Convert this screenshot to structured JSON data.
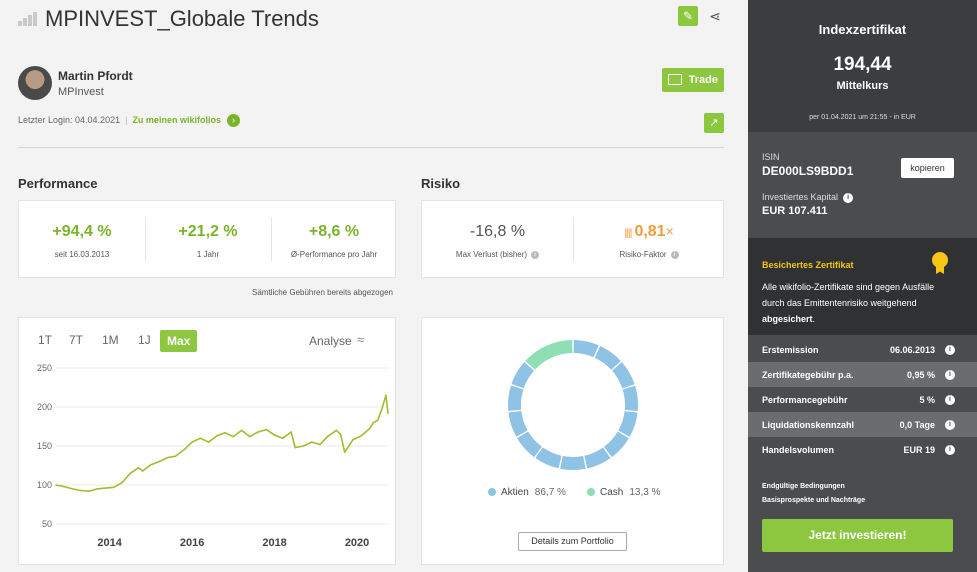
{
  "header": {
    "title": "MPINVEST_Globale Trends",
    "edit_icon": "pencil-icon",
    "share_icon": "share-icon"
  },
  "trader": {
    "name": "Martin Pfordt",
    "company": "MPInvest",
    "trade_label": "Trade",
    "last_login": "Letzter Login: 04.04.2021",
    "separator": "|",
    "wikifolios_link": "Zu meinen wikifolios"
  },
  "performance": {
    "title": "Performance",
    "kpis": [
      {
        "value": "+94,4 %",
        "label": "seit 16.03.2013"
      },
      {
        "value": "+21,2 %",
        "label": "1 Jahr"
      },
      {
        "value": "+8,6 %",
        "label": "Ø-Performance pro Jahr"
      }
    ],
    "fee_note": "Sämtliche Gebühren bereits abgezogen"
  },
  "risk": {
    "title": "Risiko",
    "max_loss_value": "-16,8 %",
    "max_loss_label": "Max Verlust (bisher)",
    "factor_value": "0,81",
    "factor_suffix": "×",
    "factor_label": "Risiko-Faktor"
  },
  "chart_controls": {
    "ranges": [
      "1T",
      "7T",
      "1M",
      "1J",
      "Max"
    ],
    "active": "Max",
    "analyse_label": "Analyse"
  },
  "chart_data": [
    {
      "type": "line",
      "title": "",
      "xlabel": "",
      "ylabel": "",
      "x_ticks": [
        "2014",
        "2016",
        "2018",
        "2020"
      ],
      "y_ticks": [
        250,
        200,
        150,
        100,
        50
      ],
      "ylim": [
        50,
        250
      ],
      "xlim": [
        2013.2,
        2021.25
      ],
      "color": "#9bbf2f",
      "grid": true,
      "series": [
        {
          "x": [
            2013.2,
            2013.4,
            2013.6,
            2013.8,
            2014.0,
            2014.2,
            2014.4,
            2014.6,
            2014.8,
            2015.0,
            2015.2,
            2015.3,
            2015.5,
            2015.7,
            2015.9,
            2016.1,
            2016.3,
            2016.5,
            2016.7,
            2016.9,
            2017.1,
            2017.3,
            2017.5,
            2017.7,
            2017.9,
            2018.1,
            2018.3,
            2018.5,
            2018.7,
            2018.9,
            2019.0,
            2019.2,
            2019.4,
            2019.6,
            2019.8,
            2020.0,
            2020.1,
            2020.2,
            2020.4,
            2020.6,
            2020.8,
            2020.9,
            2021.0,
            2021.1,
            2021.2,
            2021.25
          ],
          "values": [
            100,
            98,
            95,
            93,
            92,
            95,
            96,
            97,
            103,
            115,
            122,
            118,
            126,
            130,
            135,
            137,
            145,
            155,
            160,
            155,
            163,
            167,
            162,
            170,
            162,
            168,
            171,
            164,
            160,
            168,
            148,
            150,
            155,
            152,
            163,
            170,
            165,
            142,
            158,
            163,
            172,
            180,
            183,
            197,
            215,
            192
          ]
        }
      ]
    },
    {
      "type": "pie",
      "title": "",
      "categories": [
        "Aktien",
        "Cash"
      ],
      "values": [
        86.7,
        13.3
      ],
      "colors": [
        "#8ec3e6",
        "#8ee0b4"
      ]
    }
  ],
  "portfolio": {
    "legend": [
      {
        "name": "Aktien",
        "pct": "86,7 %",
        "color": "#8ec3e6"
      },
      {
        "name": "Cash",
        "pct": "13,3 %",
        "color": "#8ee0b4"
      }
    ],
    "details_label": "Details zum Portfolio"
  },
  "sidebar": {
    "title": "Indexzertifikat",
    "price": "194,44",
    "price_label": "Mittelkurs",
    "asof": "per 01.04.2021 um 21:55 - in EUR",
    "isin_label": "ISIN",
    "isin": "DE000LS9BDD1",
    "copy_label": "kopieren",
    "capital_label": "Investiertes Kapital",
    "capital": "EUR 107.411",
    "secured_title": "Besichertes Zertifikat",
    "secured_text_pre": "Alle wikifolio-Zertifikate sind gegen Ausfälle durch das Emittentenrisiko weitgehend ",
    "secured_text_bold": "abgesichert",
    "secured_text_post": ".",
    "rows": [
      {
        "key": "Erstemission",
        "value": "06.06.2013"
      },
      {
        "key": "Zertifikategebühr p.a.",
        "value": "0,95 %"
      },
      {
        "key": "Performancegebühr",
        "value": "5 %"
      },
      {
        "key": "Liquidationskennzahl",
        "value": "0,0 Tage"
      },
      {
        "key": "Handelsvolumen",
        "value": "EUR 19"
      }
    ],
    "legal_links": [
      "Endgültige Bedingungen",
      "Basisprospekte und Nachträge"
    ],
    "cta": "Jetzt investieren!"
  }
}
